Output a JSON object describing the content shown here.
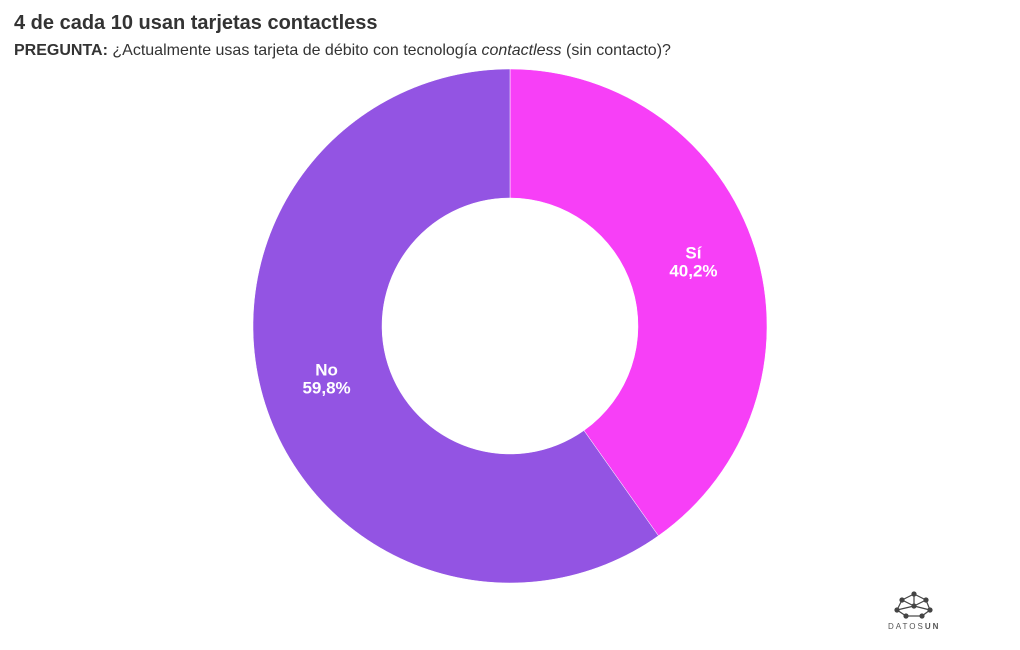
{
  "chart_data": {
    "type": "pie",
    "title": "4 de cada 10 usan tarjetas contactless",
    "subtitle": {
      "label": "PREGUNTA:",
      "before": "¿Actualmente usas tarjeta de débito con tecnología ",
      "emphasis": "contactless",
      "after": " (sin contacto)?"
    },
    "categories": [
      "Sí",
      "No"
    ],
    "values": [
      40.2,
      59.8
    ],
    "value_labels": [
      "40,2%",
      "59,8%"
    ],
    "colors": [
      "#f73ff7",
      "#9354e3"
    ],
    "donut": true
  },
  "logo": {
    "text": "DATOS",
    "strong": "UN"
  }
}
